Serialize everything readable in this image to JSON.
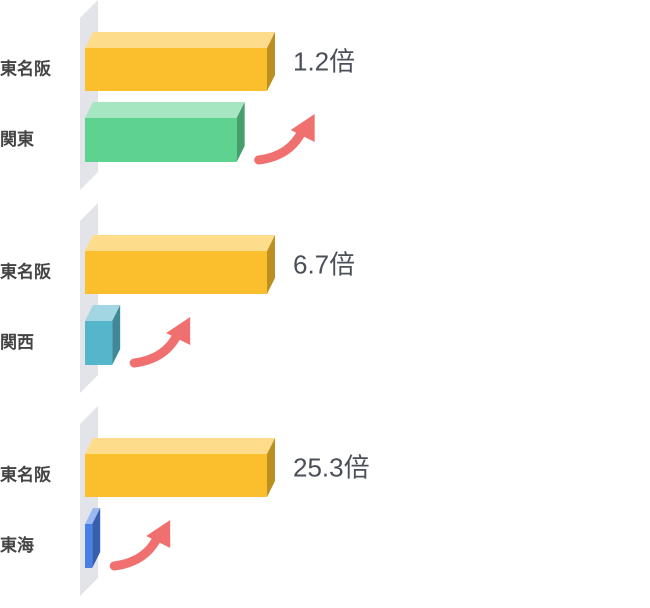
{
  "chart_data": [
    {
      "type": "bar",
      "orientation": "horizontal",
      "categories": [
        "東名阪",
        "関東"
      ],
      "values": [
        1.2,
        1
      ],
      "value_labels": [
        "1.2倍",
        null
      ],
      "colors": [
        "#fbbf2d",
        "#5dd38f"
      ],
      "xlim": [
        0,
        1.2
      ]
    },
    {
      "type": "bar",
      "orientation": "horizontal",
      "categories": [
        "東名阪",
        "関西"
      ],
      "values": [
        6.7,
        1
      ],
      "value_labels": [
        "6.7倍",
        null
      ],
      "colors": [
        "#fbbf2d",
        "#54b5cb"
      ],
      "xlim": [
        0,
        6.7
      ]
    },
    {
      "type": "bar",
      "orientation": "horizontal",
      "categories": [
        "東名阪",
        "東海"
      ],
      "values": [
        25.3,
        1
      ],
      "value_labels": [
        "25.3倍",
        null
      ],
      "colors": [
        "#fbbf2d",
        "#4a7fe6"
      ],
      "xlim": [
        0,
        25.3
      ]
    }
  ]
}
